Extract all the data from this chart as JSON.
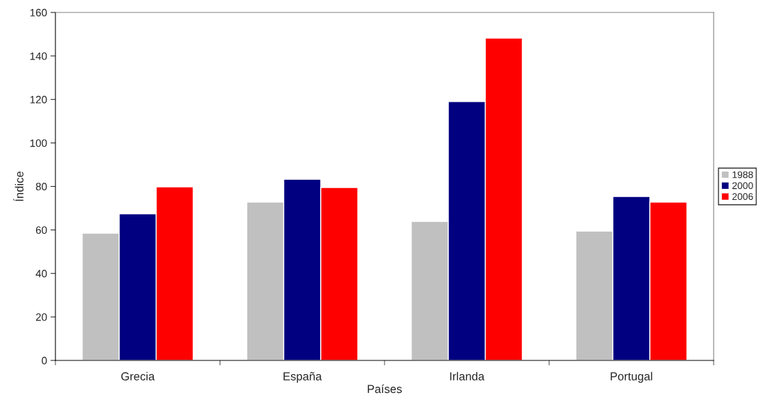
{
  "chart_data": {
    "type": "bar",
    "xlabel": "Países",
    "ylabel": "Índice",
    "categories": [
      "Grecia",
      "España",
      "Irlanda",
      "Portugal"
    ],
    "series": [
      {
        "name": "1988",
        "color": "#c0c0c0",
        "values": [
          58.5,
          72.8,
          63.9,
          59.5
        ]
      },
      {
        "name": "2000",
        "color": "#000080",
        "values": [
          67.4,
          83.3,
          119,
          75.4
        ]
      },
      {
        "name": "2006",
        "color": "#ff0000",
        "values": [
          79.8,
          79.5,
          148.2,
          72.8
        ]
      }
    ],
    "ylim": [
      0,
      160
    ],
    "yticks": [
      0,
      20,
      40,
      60,
      80,
      100,
      120,
      140,
      160
    ],
    "grid": false,
    "legend": "right"
  }
}
